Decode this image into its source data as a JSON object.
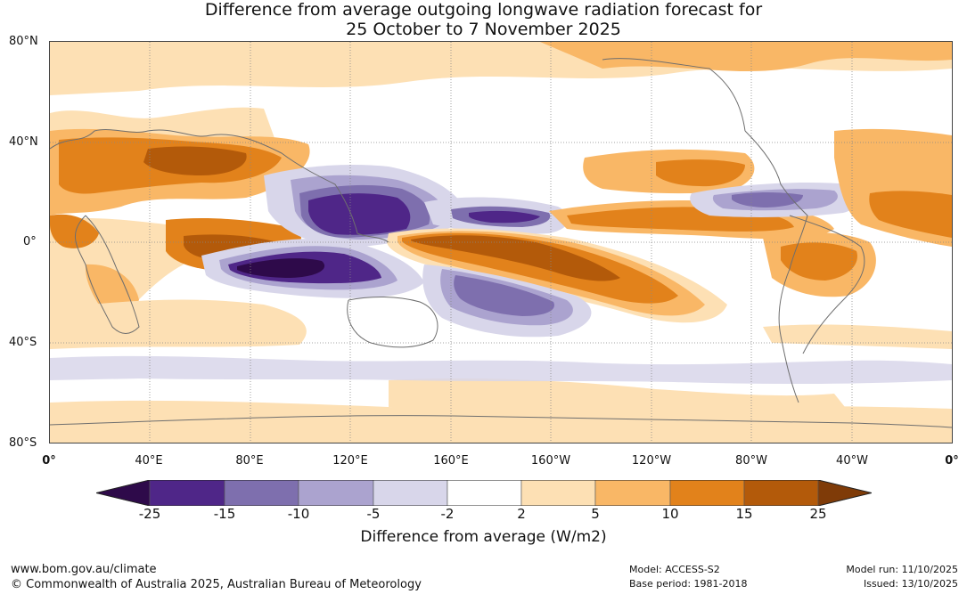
{
  "title": {
    "line1": "Difference from average outgoing longwave radiation forecast for",
    "line2": "25 October to 7 November 2025"
  },
  "map": {
    "latitude_labels": [
      "80°N",
      "40°N",
      "0°",
      "40°S",
      "80°S"
    ],
    "longitude_labels": [
      "0°",
      "40°E",
      "80°E",
      "120°E",
      "160°E",
      "160°W",
      "120°W",
      "80°W",
      "40°W",
      "0°"
    ]
  },
  "colorbar": {
    "title": "Difference from average (W/m2)",
    "ticks": [
      "-25",
      "-15",
      "-10",
      "-5",
      "-2",
      "2",
      "5",
      "10",
      "15",
      "25"
    ],
    "colors": {
      "lt_neg25": "#2e0a4a",
      "neg25_neg15": "#4f2688",
      "neg15_neg10": "#7e6fae",
      "neg10_neg5": "#aba3cf",
      "neg5_neg2": "#d8d6ea",
      "neg2_2": "#ffffff",
      "2_5": "#fde0b4",
      "5_10": "#f9b766",
      "10_15": "#e2821b",
      "15_25": "#b35a0a",
      "gt_25": "#7f3b08"
    }
  },
  "footer": {
    "url": "www.bom.gov.au/climate",
    "copyright": "© Commonwealth of Australia 2025, Australian Bureau of Meteorology",
    "model": "Model: ACCESS-S2",
    "base_period": "Base period: 1981-2018",
    "model_run": "Model run: 11/10/2025",
    "issued": "Issued: 13/10/2025"
  }
}
